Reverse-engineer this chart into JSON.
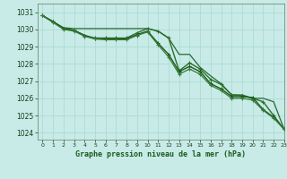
{
  "background_color": "#c8ebe8",
  "grid_color": "#a8d8d0",
  "xlabel": "Graphe pression niveau de la mer (hPa)",
  "xlim": [
    -0.5,
    23
  ],
  "ylim": [
    1023.6,
    1031.5
  ],
  "yticks": [
    1024,
    1025,
    1026,
    1027,
    1028,
    1029,
    1030,
    1031
  ],
  "xticks": [
    0,
    1,
    2,
    3,
    4,
    5,
    6,
    7,
    8,
    9,
    10,
    11,
    12,
    13,
    14,
    15,
    16,
    17,
    18,
    19,
    20,
    21,
    22,
    23
  ],
  "series": [
    {
      "x": [
        0,
        1,
        2,
        3,
        4,
        5,
        6,
        7,
        8,
        9,
        10,
        11,
        12,
        13,
        14,
        15,
        16,
        17,
        18,
        19,
        20,
        21,
        22,
        23
      ],
      "y": [
        1030.8,
        1030.45,
        1030.1,
        1030.05,
        1030.05,
        1030.05,
        1030.05,
        1030.05,
        1030.05,
        1030.05,
        1030.05,
        1029.9,
        1029.5,
        1028.55,
        1028.55,
        1027.8,
        1027.3,
        1026.85,
        1026.2,
        1026.2,
        1026.0,
        1026.0,
        1025.8,
        1024.2
      ],
      "color": "#2a6a2a",
      "lw": 0.9,
      "marker": null,
      "ms": 0
    },
    {
      "x": [
        0,
        1,
        2,
        3,
        4,
        5,
        6,
        7,
        8,
        9,
        10,
        11,
        12,
        13,
        14,
        15,
        16,
        17,
        18,
        19,
        20,
        21,
        22,
        23
      ],
      "y": [
        1030.8,
        1030.45,
        1030.05,
        1029.95,
        1029.65,
        1029.5,
        1029.5,
        1029.5,
        1029.5,
        1029.8,
        1030.05,
        1029.9,
        1029.5,
        1027.6,
        1028.05,
        1027.7,
        1027.1,
        1026.8,
        1026.2,
        1026.15,
        1026.0,
        1025.8,
        1025.0,
        1024.2
      ],
      "color": "#2d6e2d",
      "lw": 1.0,
      "marker": "+",
      "ms": 3.5
    },
    {
      "x": [
        0,
        1,
        2,
        3,
        4,
        5,
        6,
        7,
        8,
        9,
        10,
        11,
        12,
        13,
        14,
        15,
        16,
        17,
        18,
        19,
        20,
        21,
        22,
        23
      ],
      "y": [
        1030.8,
        1030.45,
        1030.05,
        1029.95,
        1029.65,
        1029.45,
        1029.45,
        1029.45,
        1029.45,
        1029.7,
        1029.9,
        1029.2,
        1028.55,
        1027.55,
        1027.85,
        1027.55,
        1026.85,
        1026.55,
        1026.1,
        1026.1,
        1026.05,
        1025.35,
        1024.9,
        1024.2
      ],
      "color": "#1a5c1a",
      "lw": 1.0,
      "marker": "+",
      "ms": 3.5
    },
    {
      "x": [
        0,
        1,
        2,
        3,
        4,
        5,
        6,
        7,
        8,
        9,
        10,
        11,
        12,
        13,
        14,
        15,
        16,
        17,
        18,
        19,
        20,
        21,
        22,
        23
      ],
      "y": [
        1030.8,
        1030.4,
        1030.0,
        1029.9,
        1029.6,
        1029.45,
        1029.4,
        1029.4,
        1029.4,
        1029.65,
        1029.85,
        1029.1,
        1028.4,
        1027.4,
        1027.7,
        1027.4,
        1026.75,
        1026.45,
        1026.0,
        1026.0,
        1025.9,
        1025.3,
        1024.85,
        1024.2
      ],
      "color": "#3a7a3a",
      "lw": 0.9,
      "marker": "+",
      "ms": 3.5
    }
  ]
}
